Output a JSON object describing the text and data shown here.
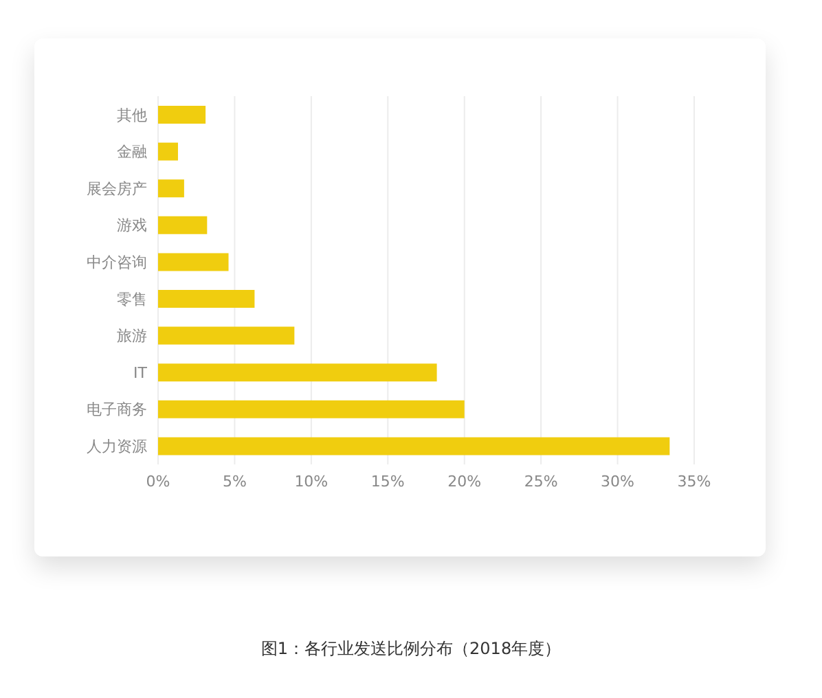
{
  "chart_data": {
    "type": "bar",
    "orientation": "horizontal",
    "categories": [
      "其他",
      "金融",
      "展会房产",
      "游戏",
      "中介咨询",
      "零售",
      "旅游",
      "IT",
      "电子商务",
      "人力资源"
    ],
    "values": [
      3.1,
      1.3,
      1.7,
      3.2,
      4.6,
      6.3,
      8.9,
      18.2,
      20.0,
      33.4
    ],
    "color": "#f0cd0f",
    "xlim": [
      0,
      35
    ],
    "xticks": [
      {
        "value": 0,
        "label": "0%"
      },
      {
        "value": 5,
        "label": "5%"
      },
      {
        "value": 10,
        "label": "10%"
      },
      {
        "value": 15,
        "label": "15%"
      },
      {
        "value": 20,
        "label": "20%"
      },
      {
        "value": 25,
        "label": "25%"
      },
      {
        "value": 30,
        "label": "30%"
      },
      {
        "value": 35,
        "label": "35%"
      }
    ],
    "grid": "x",
    "annotations": [
      "图1：各行业发送比例分布（2018年度）"
    ]
  }
}
